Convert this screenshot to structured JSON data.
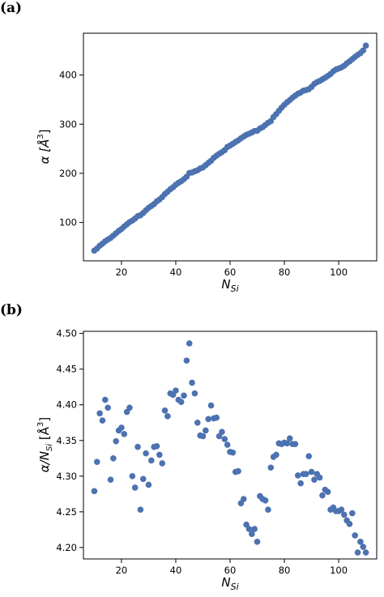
{
  "colors": {
    "marker": "#4c72b0",
    "axes": "#000000"
  },
  "chart_data": [
    {
      "panel_label": "(a)",
      "type": "scatter",
      "title": "",
      "xlabel_main": "N",
      "xlabel_sub": "Si",
      "ylabel_text": "α [Å",
      "ylabel_sup": "3",
      "ylabel_end": "]",
      "xlim": [
        6,
        114
      ],
      "ylim": [
        22,
        485
      ],
      "xticks": [
        20,
        40,
        60,
        80,
        100
      ],
      "yticks": [
        100,
        200,
        300,
        400
      ],
      "series": [
        {
          "x": [
            10,
            11,
            12,
            13,
            14,
            15,
            16,
            17,
            18,
            19,
            20,
            21,
            22,
            23,
            24,
            25,
            26,
            27,
            28,
            29,
            30,
            31,
            32,
            33,
            34,
            35,
            36,
            37,
            38,
            39,
            40,
            41,
            42,
            43,
            44,
            45,
            46,
            47,
            48,
            49,
            50,
            51,
            52,
            53,
            54,
            55,
            56,
            57,
            58,
            59,
            60,
            61,
            62,
            63,
            64,
            65,
            66,
            67,
            68,
            69,
            70,
            71,
            72,
            73,
            74,
            75,
            76,
            77,
            78,
            79,
            80,
            81,
            82,
            83,
            84,
            85,
            86,
            87,
            88,
            89,
            90,
            91,
            92,
            93,
            94,
            95,
            96,
            97,
            98,
            99,
            100,
            101,
            102,
            103,
            104,
            105,
            106,
            107,
            108,
            109,
            110
          ],
          "y": [
            42.8,
            47.1,
            52.7,
            56.9,
            61.7,
            65.3,
            68.7,
            73.3,
            78.1,
            82.9,
            86.7,
            91.8,
            96.2,
            100.9,
            103.8,
            108.0,
            112.9,
            114.8,
            119.4,
            124.7,
            129.9,
            133.5,
            137.4,
            143.0,
            146.8,
            151.6,
            158.1,
            162.5,
            167.7,
            171.6,
            176.7,
            180.7,
            183.9,
            188.2,
            193.0,
            200.6,
            201.7,
            204.1,
            206.3,
            209.9,
            212.1,
            216.5,
            221.3,
            225.5,
            231.5,
            235.9,
            239.7,
            243.1,
            247.1,
            253.6,
            256.5,
            260.0,
            263.7,
            267.0,
            271.2,
            274.8,
            278.3,
            280.5,
            283.1,
            286.2,
            286.5,
            291.2,
            293.9,
            298.4,
            302.8,
            306.2,
            314.5,
            320.5,
            327.2,
            333.8,
            339.4,
            344.6,
            349.0,
            354.0,
            358.1,
            362.0,
            364.4,
            368.1,
            369.3,
            371.3,
            375.7,
            382.0,
            385.4,
            387.9,
            391.2,
            394.5,
            398.1,
            402.0,
            407.5,
            411.1,
            413.2,
            415.5,
            418.7,
            423.8,
            427.6,
            432.1,
            436.8,
            440.9,
            444.5,
            449.8,
            459.8
          ]
        }
      ]
    },
    {
      "panel_label": "(b)",
      "type": "scatter",
      "title": "",
      "xlabel_main": "N",
      "xlabel_sub": "Si",
      "ylabel_text": "α/N",
      "ylabel_sub": "Si",
      "ylabel_bracket": " [Å",
      "ylabel_sup": "3",
      "ylabel_end": "]",
      "xlim": [
        6,
        114
      ],
      "ylim": [
        4.184,
        4.503
      ],
      "xticks": [
        20,
        40,
        60,
        80,
        100
      ],
      "yticks": [
        "4.20",
        "4.25",
        "4.30",
        "4.35",
        "4.40",
        "4.45",
        "4.50"
      ],
      "series": [
        {
          "x": [
            10,
            11,
            12,
            13,
            14,
            15,
            16,
            17,
            18,
            19,
            20,
            21,
            22,
            23,
            24,
            25,
            26,
            27,
            28,
            29,
            30,
            31,
            32,
            33,
            34,
            35,
            36,
            37,
            38,
            39,
            40,
            41,
            42,
            43,
            44,
            45,
            46,
            47,
            48,
            49,
            50,
            51,
            52,
            53,
            54,
            55,
            56,
            57,
            58,
            59,
            60,
            61,
            62,
            63,
            64,
            65,
            66,
            67,
            68,
            69,
            70,
            71,
            72,
            73,
            74,
            75,
            76,
            77,
            78,
            79,
            80,
            81,
            82,
            83,
            84,
            85,
            86,
            87,
            88,
            89,
            90,
            91,
            92,
            93,
            94,
            95,
            96,
            97,
            98,
            99,
            100,
            101,
            102,
            103,
            104,
            105,
            106,
            107,
            108,
            109,
            110
          ],
          "y": [
            4.279,
            4.32,
            4.388,
            4.378,
            4.407,
            4.396,
            4.295,
            4.325,
            4.349,
            4.364,
            4.368,
            4.359,
            4.39,
            4.396,
            4.3,
            4.284,
            4.341,
            4.253,
            4.296,
            4.332,
            4.288,
            4.322,
            4.341,
            4.342,
            4.33,
            4.318,
            4.392,
            4.384,
            4.416,
            4.414,
            4.42,
            4.407,
            4.404,
            4.413,
            4.462,
            4.486,
            4.431,
            4.416,
            4.375,
            4.357,
            4.356,
            4.364,
            4.38,
            4.399,
            4.381,
            4.382,
            4.356,
            4.362,
            4.352,
            4.344,
            4.334,
            4.333,
            4.306,
            4.307,
            4.262,
            4.268,
            4.232,
            4.226,
            4.219,
            4.226,
            4.208,
            4.272,
            4.268,
            4.266,
            4.253,
            4.312,
            4.327,
            4.33,
            4.346,
            4.345,
            4.347,
            4.346,
            4.353,
            4.345,
            4.345,
            4.301,
            4.29,
            4.303,
            4.303,
            4.328,
            4.306,
            4.295,
            4.303,
            4.298,
            4.273,
            4.281,
            4.278,
            4.253,
            4.256,
            4.251,
            4.251,
            4.253,
            4.246,
            4.238,
            4.233,
            4.248,
            4.217,
            4.193,
            4.208,
            4.201,
            4.193
          ]
        }
      ]
    }
  ]
}
